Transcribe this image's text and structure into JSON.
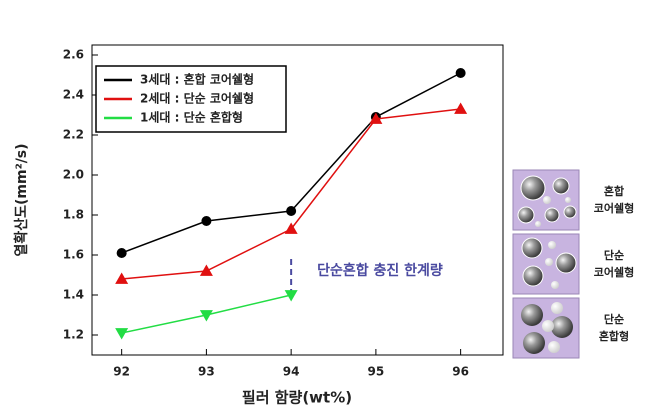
{
  "chart_data": {
    "type": "line",
    "x": [
      92,
      93,
      94,
      95,
      96
    ],
    "series": [
      {
        "name": "3세대 : 혼합 코어쉘형",
        "color": "#000000",
        "marker": "circle",
        "values": [
          1.61,
          1.77,
          1.82,
          2.29,
          2.51
        ]
      },
      {
        "name": "2세대 : 단순 코어쉘형",
        "color": "#e01010",
        "marker": "triangle-up",
        "values": [
          1.48,
          1.52,
          1.73,
          2.28,
          2.33
        ]
      },
      {
        "name": "1세대 : 단순 혼합형",
        "color": "#22dd44",
        "marker": "triangle-down",
        "values": [
          1.21,
          1.3,
          1.4,
          null,
          null
        ]
      }
    ],
    "xlabel": "필러 함량(wt%)",
    "ylabel": "열확산도(mm²/s)",
    "xlim": [
      91.65,
      96.5
    ],
    "xticks": [
      92,
      93,
      94,
      95,
      96
    ],
    "ylim": [
      1.1,
      2.65
    ],
    "yticks": [
      1.2,
      1.4,
      1.6,
      1.8,
      {
        "value": 2,
        "label": "2.0"
      },
      2.2,
      2.4,
      2.6
    ],
    "vline": {
      "x": 94,
      "label": "단순혼합 충진 한계량",
      "color": "#4a4aa0"
    },
    "legend": "upper left",
    "side_panels": [
      [
        "혼합",
        "코어쉘형"
      ],
      [
        "단순",
        "코어쉘형"
      ],
      [
        "단순",
        "혼합형"
      ]
    ]
  }
}
